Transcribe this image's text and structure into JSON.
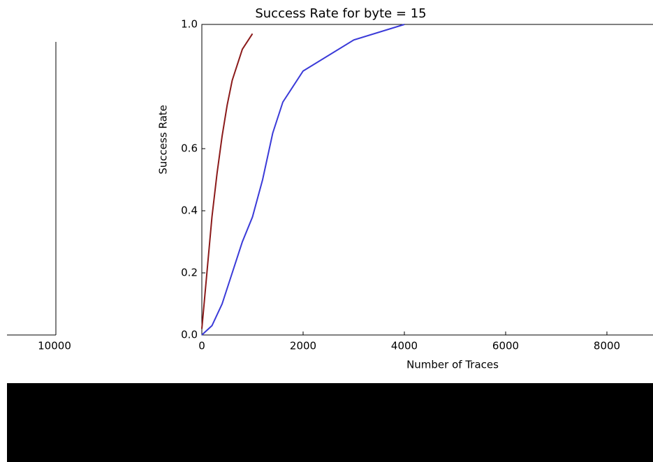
{
  "chart_data": {
    "type": "line",
    "title": "Success Rate for byte = 15",
    "xlabel": "Number of Traces",
    "ylabel": "Success Rate",
    "xlim": [
      0,
      10000
    ],
    "ylim": [
      0,
      1
    ],
    "xticks": [
      0,
      2000,
      4000,
      6000,
      8000
    ],
    "yticks": [
      {
        "value": 0,
        "label": "0.0"
      },
      {
        "value": 0.2,
        "label": "0.2"
      },
      {
        "value": 0.4,
        "label": "0.4"
      },
      {
        "value": 0.6,
        "label": "0.6"
      },
      {
        "value": 1,
        "label": "1.0"
      }
    ],
    "series": [
      {
        "color": "#8b1a1a",
        "x": [
          0,
          100,
          200,
          300,
          400,
          500,
          600,
          800,
          1000
        ],
        "values": [
          0.02,
          0.2,
          0.38,
          0.52,
          0.64,
          0.74,
          0.82,
          0.92,
          0.97
        ]
      },
      {
        "color": "#3a3ad8",
        "x": [
          0,
          200,
          400,
          600,
          800,
          1000,
          1200,
          1400,
          1600,
          2000,
          3000,
          4000
        ],
        "values": [
          0,
          0.03,
          0.1,
          0.2,
          0.3,
          0.38,
          0.5,
          0.65,
          0.75,
          0.85,
          0.95,
          1.0
        ]
      }
    ],
    "ghost_xtick": 10000
  }
}
